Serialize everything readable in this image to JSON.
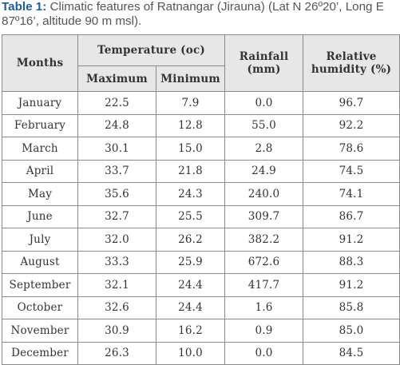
{
  "caption": {
    "label": "Table 1:",
    "text": " Climatic features of Ratnangar (Jirauna) (Lat N 26º20’, Long E 87º16’, altitude 90 m msl)."
  },
  "headers": {
    "months": "Months",
    "temperature": "Temperature (oc)",
    "maximum": "Maximum",
    "minimum": "Minimum",
    "rainfall_line1": "Rainfall",
    "rainfall_line2": "(mm)",
    "humidity_line1": "Relative",
    "humidity_line2": "humidity (%)"
  },
  "rows": [
    {
      "month": "January",
      "max": "22.5",
      "min": "7.9",
      "rain": "0.0",
      "hum": "96.7"
    },
    {
      "month": "February",
      "max": "24.8",
      "min": "12.8",
      "rain": "55.0",
      "hum": "92.2"
    },
    {
      "month": "March",
      "max": "30.1",
      "min": "15.0",
      "rain": "2.8",
      "hum": "78.6"
    },
    {
      "month": "April",
      "max": "33.7",
      "min": "21.8",
      "rain": "24.9",
      "hum": "74.5"
    },
    {
      "month": "May",
      "max": "35.6",
      "min": "24.3",
      "rain": "240.0",
      "hum": "74.1"
    },
    {
      "month": "June",
      "max": "32.7",
      "min": "25.5",
      "rain": "309.7",
      "hum": "86.7"
    },
    {
      "month": "July",
      "max": "32.0",
      "min": "26.2",
      "rain": "382.2",
      "hum": "91.2"
    },
    {
      "month": "August",
      "max": "33.3",
      "min": "25.9",
      "rain": "672.6",
      "hum": "88.3"
    },
    {
      "month": "September",
      "max": "32.1",
      "min": "24.4",
      "rain": "417.7",
      "hum": "91.2"
    },
    {
      "month": "October",
      "max": "32.6",
      "min": "24.4",
      "rain": "1.6",
      "hum": "85.8"
    },
    {
      "month": "November",
      "max": "30.9",
      "min": "16.2",
      "rain": "0.9",
      "hum": "85.0"
    },
    {
      "month": "December",
      "max": "26.3",
      "min": "10.0",
      "rain": "0.0",
      "hum": "84.5"
    }
  ]
}
